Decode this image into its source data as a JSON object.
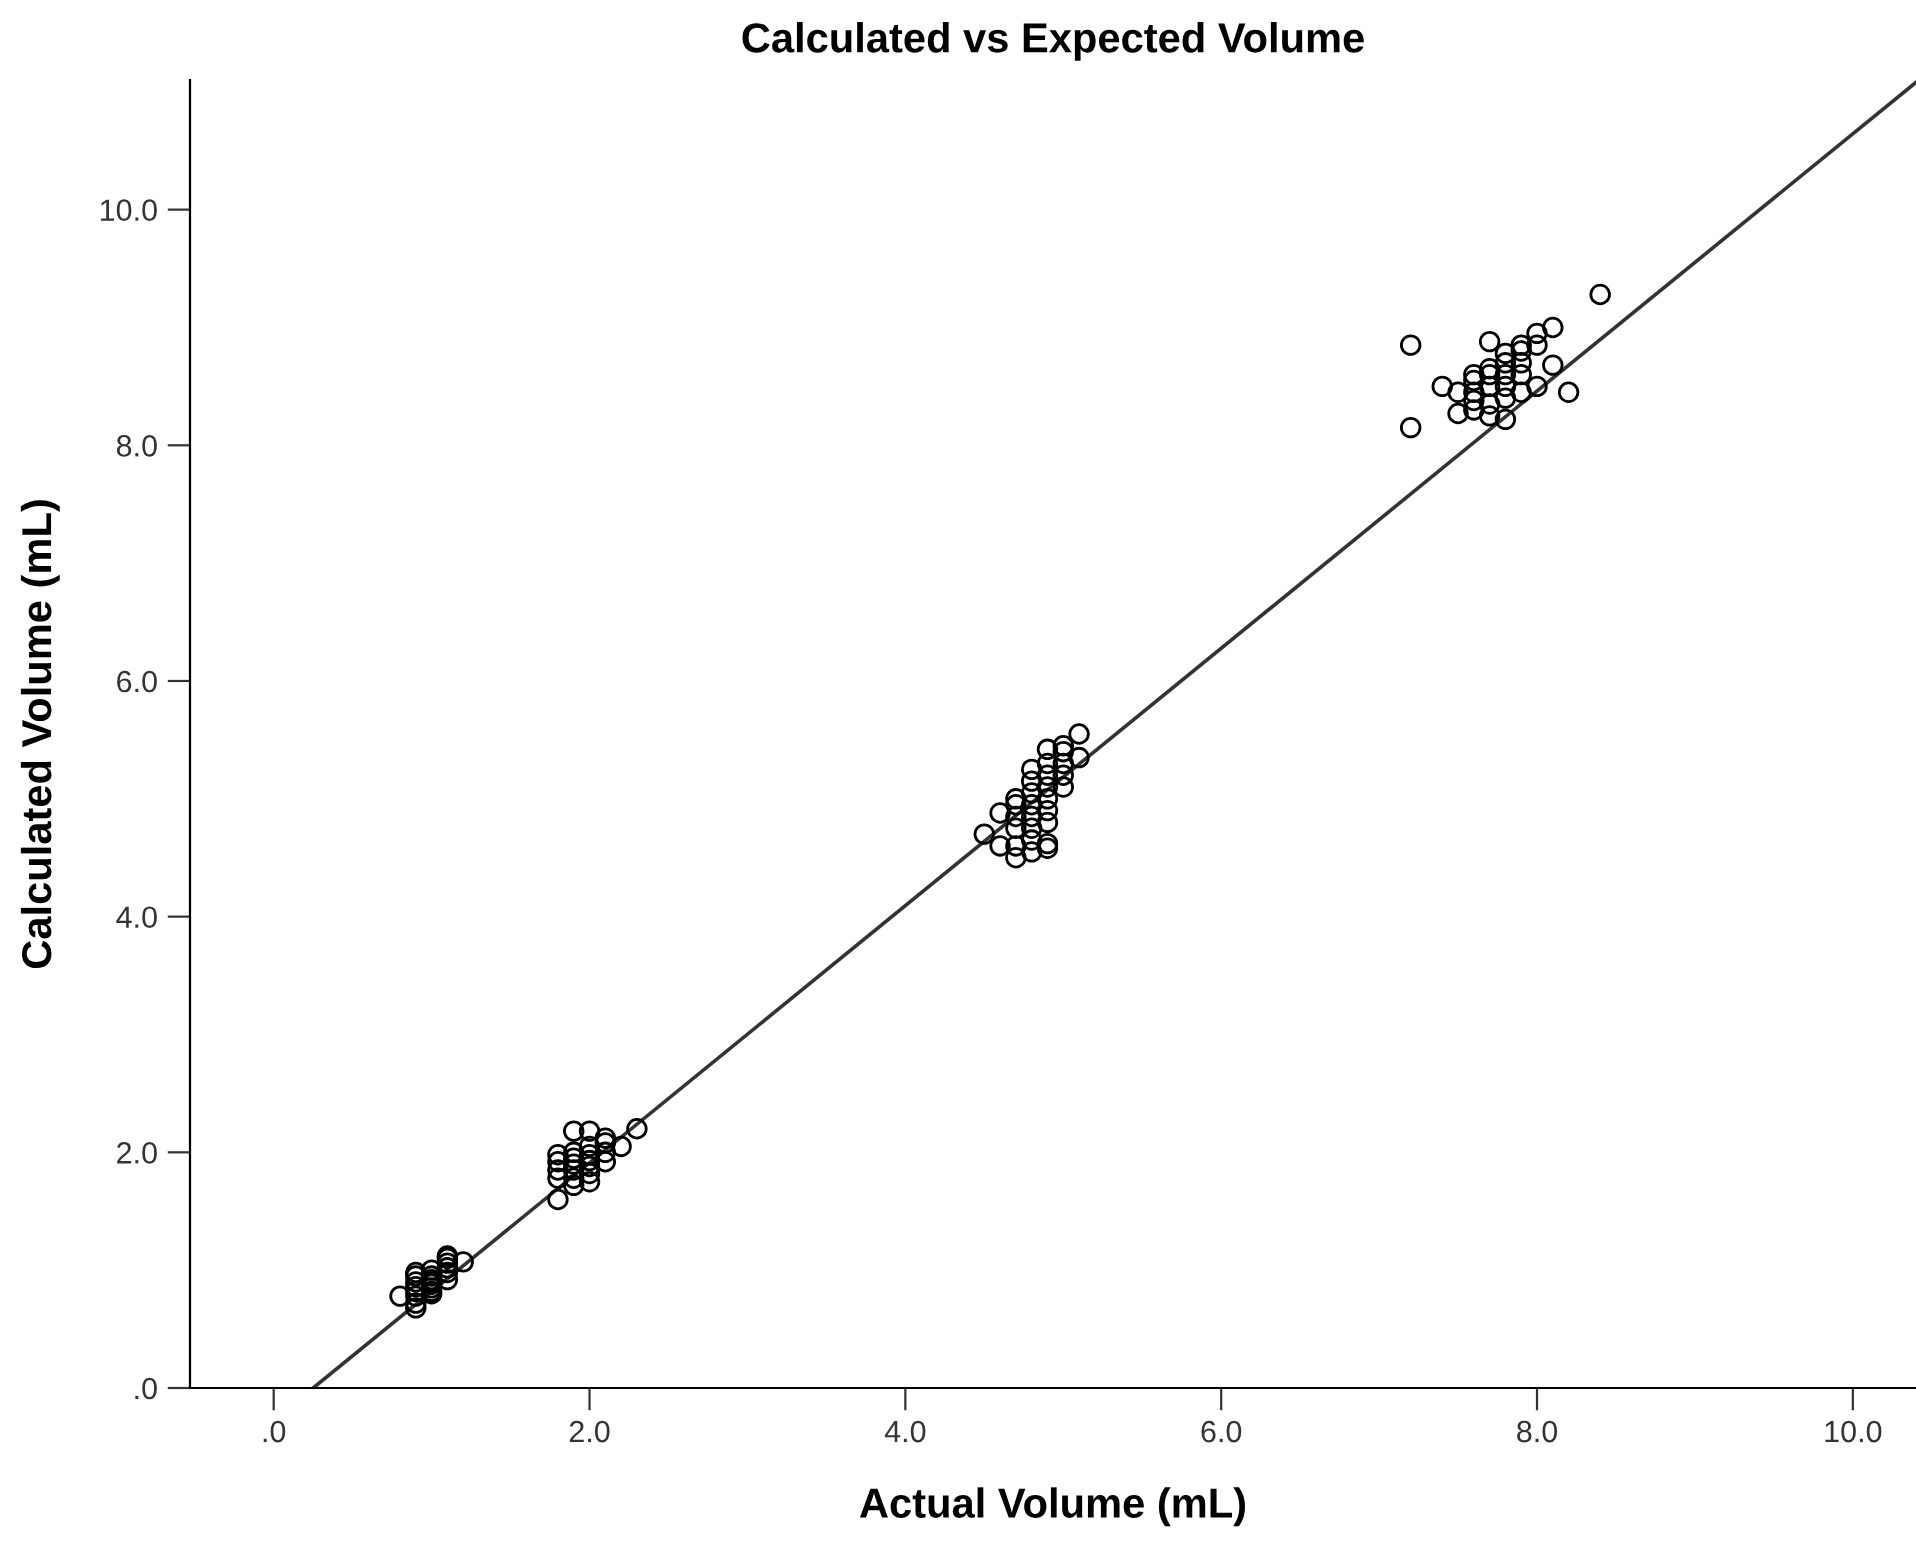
{
  "chart_data": {
    "type": "scatter",
    "title": "Calculated vs Expected Volume",
    "xlabel": "Actual Volume (mL)",
    "ylabel": "Calculated Volume (mL)",
    "xlim": [
      -0.53,
      10.4
    ],
    "ylim": [
      0,
      11.1
    ],
    "xticks": [
      {
        "value": 0,
        "label": ".0"
      },
      {
        "value": 2,
        "label": "2.0"
      },
      {
        "value": 4,
        "label": "4.0"
      },
      {
        "value": 6,
        "label": "6.0"
      },
      {
        "value": 8,
        "label": "8.0"
      },
      {
        "value": 10,
        "label": "10.0"
      }
    ],
    "yticks": [
      {
        "value": 0,
        "label": ".0"
      },
      {
        "value": 2,
        "label": "2.0"
      },
      {
        "value": 4,
        "label": "4.0"
      },
      {
        "value": 6,
        "label": "6.0"
      },
      {
        "value": 8,
        "label": "8.0"
      },
      {
        "value": 10,
        "label": "10.0"
      }
    ],
    "grid": false,
    "series": [
      {
        "marker": "circle",
        "color": "#000000",
        "x": [
          0.8,
          0.9,
          0.9,
          0.9,
          0.9,
          0.9,
          0.9,
          0.9,
          0.9,
          1.0,
          1.0,
          1.0,
          1.0,
          1.0,
          1.0,
          1.0,
          1.0,
          1.1,
          1.1,
          1.1,
          1.1,
          1.1,
          1.1,
          1.2,
          1.8,
          1.8,
          1.8,
          1.8,
          1.8,
          1.9,
          1.9,
          1.9,
          1.9,
          1.9,
          1.9,
          1.9,
          2.0,
          2.0,
          2.0,
          2.0,
          2.0,
          2.0,
          2.0,
          2.1,
          2.1,
          2.1,
          2.1,
          2.2,
          2.3,
          4.5,
          4.6,
          4.6,
          4.7,
          4.7,
          4.7,
          4.7,
          4.7,
          4.7,
          4.8,
          4.8,
          4.8,
          4.8,
          4.8,
          4.8,
          4.8,
          4.8,
          4.9,
          4.9,
          4.9,
          4.9,
          4.9,
          4.9,
          4.9,
          4.9,
          4.9,
          5.0,
          5.0,
          5.0,
          5.0,
          5.0,
          5.1,
          5.1,
          7.2,
          7.2,
          7.4,
          7.5,
          7.5,
          7.6,
          7.6,
          7.6,
          7.6,
          7.6,
          7.7,
          7.7,
          7.7,
          7.7,
          7.7,
          7.7,
          7.8,
          7.8,
          7.8,
          7.8,
          7.8,
          7.8,
          7.9,
          7.9,
          7.9,
          7.9,
          7.9,
          8.0,
          8.0,
          8.0,
          8.1,
          8.1,
          8.2,
          8.4
        ],
        "values": [
          0.78,
          0.68,
          0.72,
          0.78,
          0.82,
          0.86,
          0.9,
          0.95,
          0.98,
          0.8,
          0.82,
          0.85,
          0.88,
          0.9,
          0.92,
          0.95,
          1.0,
          0.92,
          0.98,
          1.02,
          1.06,
          1.1,
          1.12,
          1.07,
          1.6,
          1.78,
          1.85,
          1.92,
          1.98,
          1.72,
          1.78,
          1.85,
          1.9,
          1.95,
          2.0,
          2.18,
          1.75,
          1.82,
          1.88,
          1.93,
          1.98,
          2.05,
          2.18,
          1.92,
          2.0,
          2.08,
          2.12,
          2.05,
          2.2,
          4.7,
          4.6,
          4.88,
          4.5,
          4.6,
          4.75,
          4.85,
          4.95,
          5.0,
          4.55,
          4.65,
          4.75,
          4.85,
          4.95,
          5.05,
          5.15,
          5.25,
          4.58,
          4.62,
          4.8,
          4.9,
          5.0,
          5.1,
          5.2,
          5.3,
          5.42,
          5.1,
          5.2,
          5.3,
          5.4,
          5.45,
          5.35,
          5.55,
          8.15,
          8.85,
          8.5,
          8.27,
          8.45,
          8.3,
          8.38,
          8.45,
          8.55,
          8.6,
          8.25,
          8.35,
          8.5,
          8.6,
          8.65,
          8.88,
          8.22,
          8.4,
          8.5,
          8.6,
          8.7,
          8.78,
          8.45,
          8.6,
          8.7,
          8.8,
          8.85,
          8.5,
          8.85,
          8.95,
          8.68,
          9.0,
          8.45,
          9.28
        ]
      },
      {
        "type": "line",
        "color": "#333333",
        "x": [
          0.25,
          10.4
        ],
        "values": [
          0,
          11.08
        ]
      }
    ]
  }
}
